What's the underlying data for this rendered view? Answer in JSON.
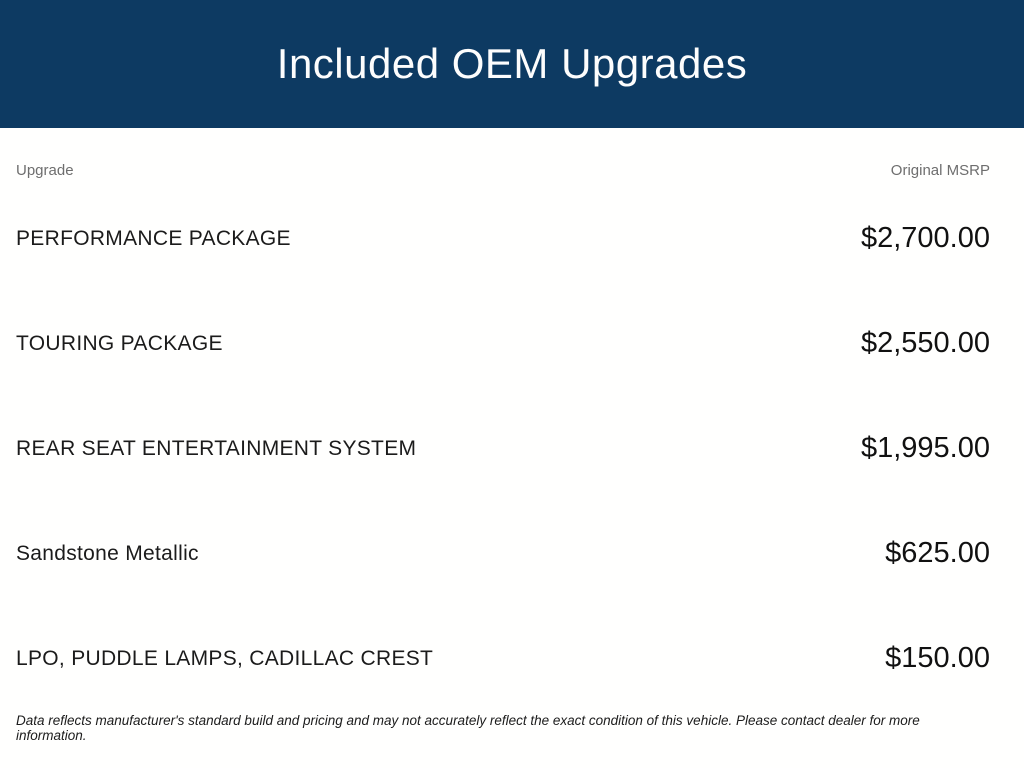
{
  "header": {
    "title": "Included OEM Upgrades",
    "bg_color": "#0d3a62",
    "text_color": "#ffffff"
  },
  "table": {
    "columns": {
      "upgrade": "Upgrade",
      "msrp": "Original MSRP"
    },
    "rows": [
      {
        "upgrade": "PERFORMANCE PACKAGE",
        "msrp": "$2,700.00"
      },
      {
        "upgrade": "TOURING PACKAGE",
        "msrp": "$2,550.00"
      },
      {
        "upgrade": "REAR SEAT ENTERTAINMENT SYSTEM",
        "msrp": "$1,995.00"
      },
      {
        "upgrade": "Sandstone Metallic",
        "msrp": "$625.00"
      },
      {
        "upgrade": "LPO, PUDDLE LAMPS, CADILLAC CREST",
        "msrp": "$150.00"
      }
    ]
  },
  "disclaimer": "Data reflects manufacturer's standard build and pricing and may not accurately reflect the exact condition of this vehicle. Please contact dealer for more information."
}
